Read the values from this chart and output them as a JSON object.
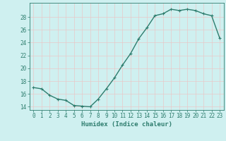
{
  "x": [
    0,
    1,
    2,
    3,
    4,
    5,
    6,
    7,
    8,
    9,
    10,
    11,
    12,
    13,
    14,
    15,
    16,
    17,
    18,
    19,
    20,
    21,
    22,
    23
  ],
  "y": [
    17.0,
    16.8,
    15.8,
    15.2,
    15.0,
    14.2,
    14.1,
    14.0,
    15.2,
    16.8,
    18.5,
    20.5,
    22.3,
    24.6,
    26.3,
    28.2,
    28.5,
    29.2,
    29.0,
    29.2,
    29.0,
    28.5,
    28.2,
    24.7
  ],
  "line_color": "#2e7d6e",
  "marker": "+",
  "marker_size": 3,
  "bg_color": "#cff0f0",
  "grid_color": "#e8c8c8",
  "xlabel": "Humidex (Indice chaleur)",
  "ylim": [
    13.5,
    30.2
  ],
  "xlim": [
    -0.5,
    23.5
  ],
  "yticks": [
    14,
    16,
    18,
    20,
    22,
    24,
    26,
    28
  ],
  "xticks": [
    0,
    1,
    2,
    3,
    4,
    5,
    6,
    7,
    8,
    9,
    10,
    11,
    12,
    13,
    14,
    15,
    16,
    17,
    18,
    19,
    20,
    21,
    22,
    23
  ],
  "tick_color": "#2e7d6e",
  "label_fontsize": 6.5,
  "tick_fontsize": 5.5,
  "linewidth": 1.0
}
